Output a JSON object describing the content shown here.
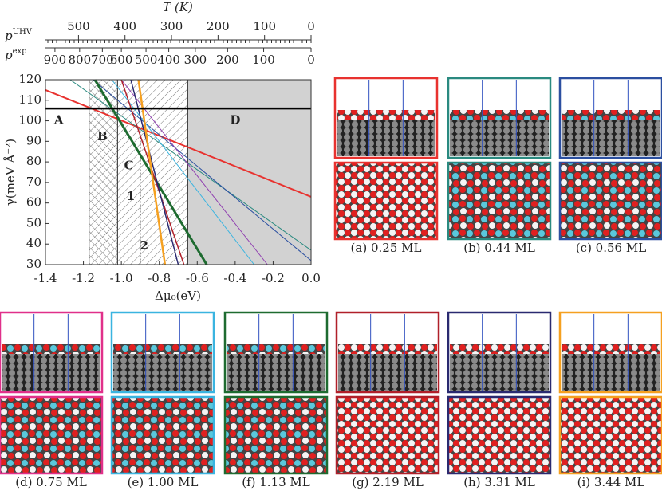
{
  "chart_data": {
    "type": "line",
    "x_label": "Δμ₀(eV)",
    "y_label": "γ(meV Å⁻²)",
    "xlim": [
      -1.4,
      0
    ],
    "ylim": [
      30,
      120
    ],
    "xticks": [
      -1.4,
      -1.2,
      {
        "value": -1,
        "label": "-1.0"
      },
      -0.8,
      -0.6,
      -0.4,
      -0.2,
      {
        "value": 0,
        "label": "0.0"
      }
    ],
    "yticks": [
      30,
      40,
      50,
      60,
      70,
      80,
      90,
      100,
      110,
      120
    ],
    "t_axis": {
      "label": "T (K)",
      "lim": [
        571,
        0
      ],
      "ticks": [
        500,
        400,
        300,
        200,
        100,
        0
      ]
    },
    "p_uhv_label": {
      "base": "p",
      "sup": "UHV"
    },
    "p_exp_axis": {
      "label": {
        "base": "p",
        "sup": "exp"
      },
      "ticks": [
        {
          "value": 900,
          "mu": -1.35
        },
        {
          "value": 800,
          "mu": -1.22
        },
        {
          "value": 700,
          "mu": -1.1
        },
        {
          "value": 600,
          "mu": -1.0
        },
        {
          "value": 500,
          "mu": -0.87
        },
        {
          "value": 400,
          "mu": -0.75
        },
        {
          "value": 300,
          "mu": -0.61
        },
        {
          "value": 200,
          "mu": -0.44
        },
        {
          "value": 100,
          "mu": -0.25
        },
        {
          "value": 0,
          "mu": 0
        }
      ]
    },
    "regions": [
      {
        "label": "A",
        "x": [
          -1.4,
          -1.17
        ],
        "fill": "none",
        "label_at": [
          -1.33,
          100
        ]
      },
      {
        "label": "B",
        "x": [
          -1.17,
          -1.02
        ],
        "fill": "cross",
        "label_at": [
          -1.1,
          92
        ]
      },
      {
        "label": "C",
        "x": [
          -1.02,
          -0.65
        ],
        "fill": "hatch",
        "label_at": [
          -0.96,
          78
        ]
      },
      {
        "label": "D",
        "x": [
          -0.65,
          0
        ],
        "fill": "#d2d2d2",
        "label_at": [
          -0.4,
          100
        ]
      }
    ],
    "annotations": [
      {
        "text": "1",
        "at": [
          -0.95,
          63
        ]
      },
      {
        "text": "2",
        "at": [
          -0.88,
          39
        ]
      }
    ],
    "divider_x": -0.9,
    "series": [
      {
        "color": "#e8322f",
        "width": 2,
        "x": [
          -1.4,
          0
        ],
        "values": [
          115,
          63
        ]
      },
      {
        "color": "#2a8a80",
        "width": 1,
        "x": [
          -1.27,
          0
        ],
        "values": [
          120,
          37
        ]
      },
      {
        "color": "#2b4fa0",
        "width": 1,
        "x": [
          -1.15,
          0
        ],
        "values": [
          120,
          32
        ]
      },
      {
        "color": "#9040b0",
        "width": 1,
        "x": [
          -1.0,
          -0.23
        ],
        "values": [
          120,
          30
        ]
      },
      {
        "color": "#3ab4e0",
        "width": 1,
        "x": [
          -1.05,
          -0.3
        ],
        "values": [
          120,
          30
        ]
      },
      {
        "color": "#1e6b30",
        "width": 3,
        "x": [
          -1.14,
          -0.55
        ],
        "values": [
          120,
          30
        ]
      },
      {
        "color": "#b0202a",
        "width": 1.5,
        "x": [
          -1.0,
          -0.67
        ],
        "values": [
          120,
          30
        ]
      },
      {
        "color": "#2a2a70",
        "width": 1.5,
        "x": [
          -0.95,
          -0.7
        ],
        "values": [
          120,
          30
        ]
      },
      {
        "color": "#f5a020",
        "width": 2.5,
        "x": [
          -0.91,
          -0.77
        ],
        "values": [
          120,
          30
        ]
      },
      {
        "color": "#000000",
        "width": 2.5,
        "x": [
          -1.4,
          0
        ],
        "values": [
          106,
          106
        ]
      }
    ]
  },
  "panels": [
    {
      "caption": "(a) 0.25 ML",
      "color": "#e8322f",
      "cyan": false
    },
    {
      "caption": "(b) 0.44 ML",
      "color": "#2a8a80",
      "cyan": true
    },
    {
      "caption": "(c) 0.56 ML",
      "color": "#2b4fa0",
      "cyan": true
    },
    {
      "caption": "(d) 0.75 ML",
      "color": "#e0308a",
      "cyan": true
    },
    {
      "caption": "(e) 1.00 ML",
      "color": "#3ab4e0",
      "cyan": true
    },
    {
      "caption": "(f) 1.13 ML",
      "color": "#1e6b30",
      "cyan": true
    },
    {
      "caption": "(g) 2.19 ML",
      "color": "#b0202a",
      "cyan": false
    },
    {
      "caption": "(h) 3.31 ML",
      "color": "#2a2a70",
      "cyan": false
    },
    {
      "caption": "(i) 3.44 ML",
      "color": "#f5a020",
      "cyan": false
    }
  ]
}
